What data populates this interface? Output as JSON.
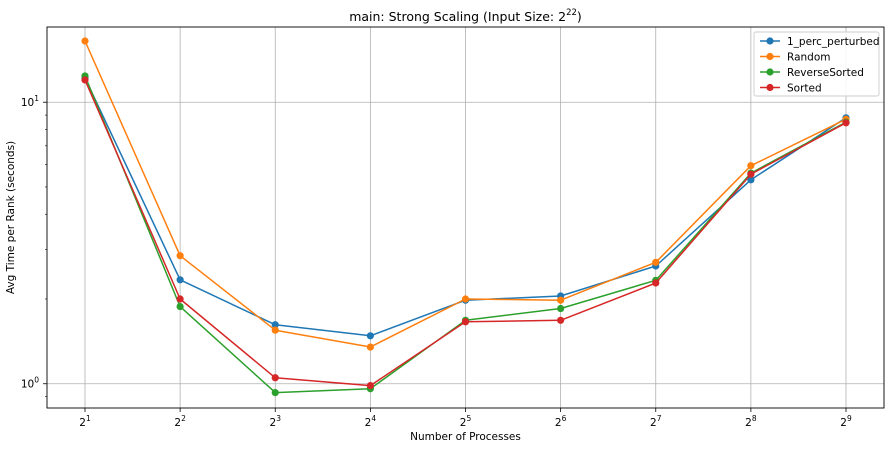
{
  "chart_data": {
    "type": "line",
    "title": {
      "prefix": "main: Strong Scaling (Input Size: ",
      "base": "2",
      "exp": "22",
      "suffix": ")"
    },
    "xlabel": "Number of Processes",
    "ylabel": "Avg Time per Rank (seconds)",
    "y_scale": "log",
    "ylim": [
      0.82,
      18.5
    ],
    "grid": true,
    "legend_position": "top-right",
    "x_tick_labels": [
      {
        "base": "2",
        "exp": "1"
      },
      {
        "base": "2",
        "exp": "2"
      },
      {
        "base": "2",
        "exp": "3"
      },
      {
        "base": "2",
        "exp": "4"
      },
      {
        "base": "2",
        "exp": "5"
      },
      {
        "base": "2",
        "exp": "6"
      },
      {
        "base": "2",
        "exp": "7"
      },
      {
        "base": "2",
        "exp": "8"
      },
      {
        "base": "2",
        "exp": "9"
      }
    ],
    "x": [
      2,
      4,
      8,
      16,
      32,
      64,
      128,
      256,
      512
    ],
    "y_tick_labels": [
      {
        "base": "10",
        "exp": "0",
        "value": 1
      },
      {
        "base": "10",
        "exp": "1",
        "value": 10
      }
    ],
    "series": [
      {
        "name": "1_perc_perturbed",
        "color": "#1f77b4",
        "values": [
          12.2,
          2.34,
          1.62,
          1.48,
          1.98,
          2.05,
          2.62,
          5.3,
          8.8
        ]
      },
      {
        "name": "Random",
        "color": "#ff7f0e",
        "values": [
          16.5,
          2.85,
          1.55,
          1.35,
          2.0,
          1.98,
          2.7,
          5.95,
          8.7
        ]
      },
      {
        "name": "ReverseSorted",
        "color": "#2ca02c",
        "values": [
          12.4,
          1.88,
          0.93,
          0.96,
          1.68,
          1.85,
          2.33,
          5.6,
          8.5
        ]
      },
      {
        "name": "Sorted",
        "color": "#d62728",
        "values": [
          12.0,
          2.0,
          1.05,
          0.985,
          1.66,
          1.68,
          2.28,
          5.55,
          8.45
        ]
      }
    ]
  }
}
